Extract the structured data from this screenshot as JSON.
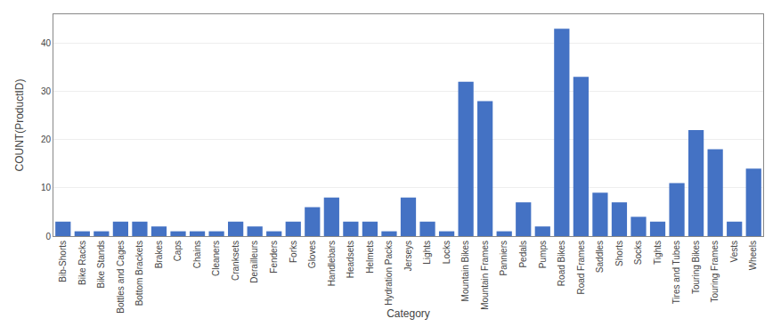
{
  "chart_data": {
    "type": "bar",
    "categories": [
      "Bib-Shorts",
      "Bike Racks",
      "Bike Stands",
      "Bottles and Cages",
      "Bottom Brackets",
      "Brakes",
      "Caps",
      "Chains",
      "Cleaners",
      "Cranksets",
      "Derailleurs",
      "Fenders",
      "Forks",
      "Gloves",
      "Handlebars",
      "Headsets",
      "Helmets",
      "Hydration Packs",
      "Jerseys",
      "Lights",
      "Locks",
      "Mountain Bikes",
      "Mountain Frames",
      "Panniers",
      "Pedals",
      "Pumps",
      "Road Bikes",
      "Road Frames",
      "Saddles",
      "Shorts",
      "Socks",
      "Tights",
      "Tires and Tubes",
      "Touring Bikes",
      "Touring Frames",
      "Vests",
      "Wheels"
    ],
    "values": [
      3,
      1,
      1,
      3,
      3,
      2,
      1,
      1,
      1,
      3,
      2,
      1,
      3,
      6,
      8,
      3,
      3,
      1,
      8,
      3,
      1,
      32,
      28,
      1,
      7,
      2,
      43,
      33,
      9,
      7,
      4,
      3,
      11,
      22,
      18,
      3,
      14
    ],
    "color": "#4472c4",
    "xlabel": "Category",
    "ylabel": "COUNT(ProductID)",
    "ylim": [
      0,
      46
    ],
    "yticks": [
      0,
      10,
      20,
      30,
      40
    ],
    "grid": true
  }
}
